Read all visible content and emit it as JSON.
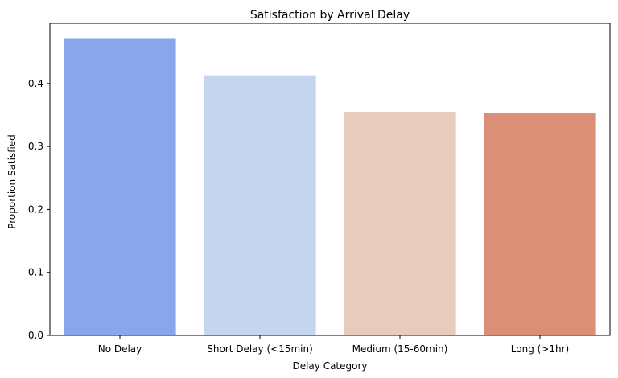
{
  "chart_data": {
    "type": "bar",
    "title": "Satisfaction by Arrival Delay",
    "xlabel": "Delay Category",
    "ylabel": "Proportion Satisfied",
    "categories": [
      "No Delay",
      "Short Delay (<15min)",
      "Medium (15-60min)",
      "Long (>1hr)"
    ],
    "values": [
      0.472,
      0.413,
      0.355,
      0.353
    ],
    "colors": [
      "#8aa6ea",
      "#c6d5ef",
      "#e9cbbd",
      "#dc8f77"
    ],
    "ylim": [
      0,
      0.4956
    ],
    "yticks": [
      0.0,
      0.1,
      0.2,
      0.3,
      0.4
    ],
    "ytick_labels": [
      "0.0",
      "0.1",
      "0.2",
      "0.3",
      "0.4"
    ],
    "grid": false,
    "legend": "none"
  }
}
